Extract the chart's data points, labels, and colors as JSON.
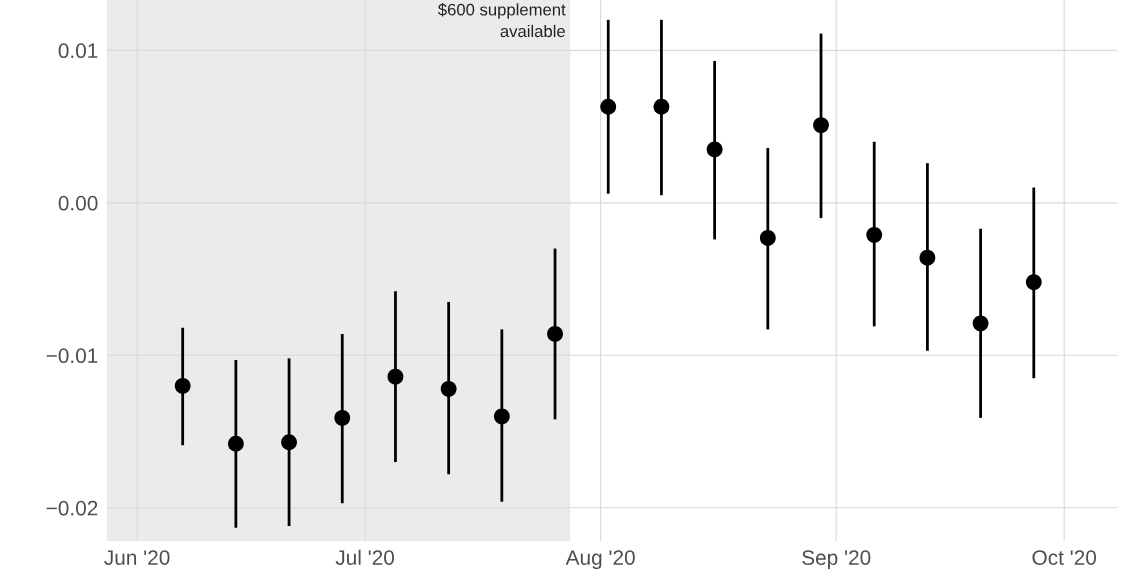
{
  "chart_data": {
    "type": "scatter",
    "x": [
      "2020-06-07",
      "2020-06-14",
      "2020-06-21",
      "2020-06-28",
      "2020-07-05",
      "2020-07-12",
      "2020-07-19",
      "2020-07-26",
      "2020-08-02",
      "2020-08-09",
      "2020-08-16",
      "2020-08-23",
      "2020-08-30",
      "2020-09-06",
      "2020-09-13",
      "2020-09-20",
      "2020-09-27"
    ],
    "series": [
      {
        "color": "#000000",
        "values": [
          -0.012,
          -0.0158,
          -0.0157,
          -0.0141,
          -0.0114,
          -0.0122,
          -0.014,
          -0.0086,
          0.0063,
          0.0063,
          0.0035,
          -0.0023,
          0.0051,
          -0.0021,
          -0.0036,
          -0.0079,
          -0.0052
        ],
        "errors": [
          [
            -0.0159,
            -0.0082
          ],
          [
            -0.0213,
            -0.0103
          ],
          [
            -0.0212,
            -0.0102
          ],
          [
            -0.0197,
            -0.0086
          ],
          [
            -0.017,
            -0.0058
          ],
          [
            -0.0178,
            -0.0065
          ],
          [
            -0.0196,
            -0.0083
          ],
          [
            -0.0142,
            -0.003
          ],
          [
            0.0006,
            0.012
          ],
          [
            0.0005,
            0.012
          ],
          [
            -0.0024,
            0.0093
          ],
          [
            -0.0083,
            0.0036
          ],
          [
            -0.001,
            0.0111
          ],
          [
            -0.0081,
            0.004
          ],
          [
            -0.0097,
            0.0026
          ],
          [
            -0.0141,
            -0.0017
          ],
          [
            -0.0115,
            0.001
          ]
        ]
      }
    ],
    "marker": "circle",
    "xlim": [
      "2020-05-28",
      "2020-10-08"
    ],
    "xticks": [
      {
        "value": "2020-06-01",
        "label": "Jun '20"
      },
      {
        "value": "2020-07-01",
        "label": "Jul '20"
      },
      {
        "value": "2020-08-01",
        "label": "Aug '20"
      },
      {
        "value": "2020-09-01",
        "label": "Sep '20"
      },
      {
        "value": "2020-10-01",
        "label": "Oct '20"
      }
    ],
    "ylim": [
      -0.0222,
      0.0133
    ],
    "yticks": [
      {
        "value": -0.02,
        "label": "−0.02"
      },
      {
        "value": -0.01,
        "label": "−0.01"
      },
      {
        "value": 0.0,
        "label": "0.00"
      },
      {
        "value": 0.01,
        "label": "0.01"
      }
    ],
    "bands": [
      {
        "axis": "x",
        "from": "2020-05-28",
        "to": "2020-07-28",
        "label": "$600 supplement\navailable",
        "color": "#ebebeb"
      }
    ],
    "grid": true
  }
}
